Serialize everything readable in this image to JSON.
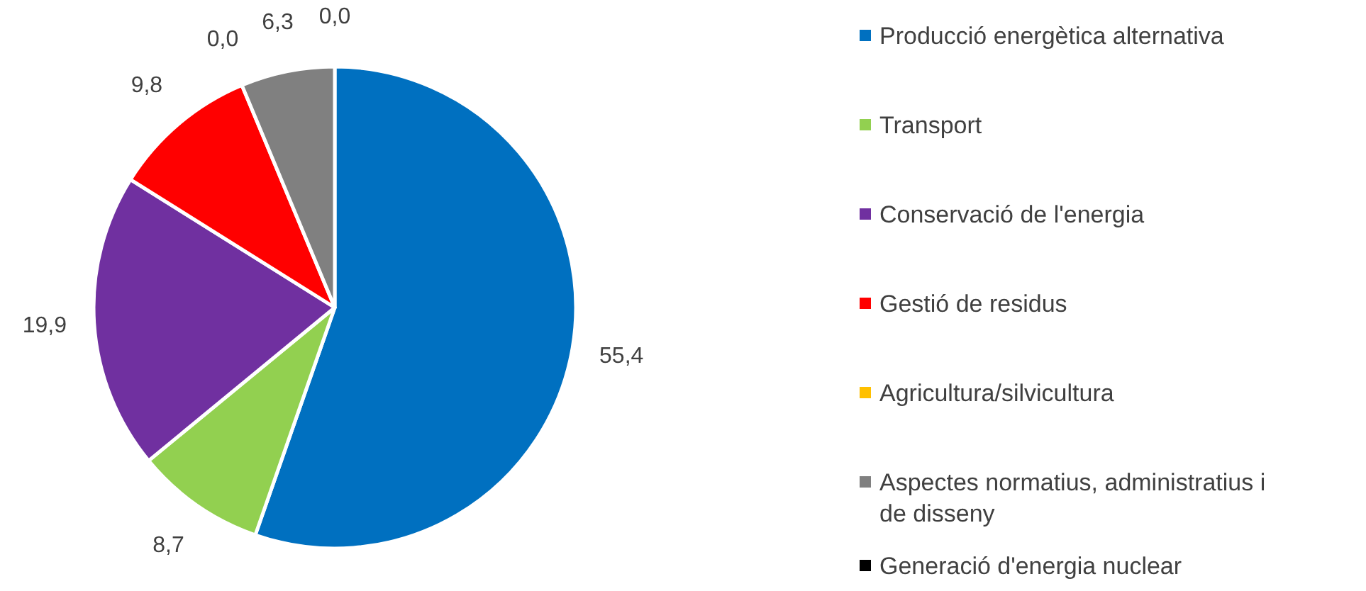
{
  "chart_data": {
    "type": "pie",
    "categories": [
      "Producció energètica alternativa",
      "Transport",
      "Conservació de l'energia",
      "Gestió de residus",
      "Agricultura/silvicultura",
      "Aspectes normatius, administratius i de disseny",
      "Generació d'energia nuclear"
    ],
    "values": [
      55.4,
      8.7,
      19.9,
      9.8,
      0.0,
      6.3,
      0.0
    ],
    "colors": [
      "#0070c0",
      "#92d050",
      "#7030a0",
      "#ff0000",
      "#ffc000",
      "#808080",
      "#000000"
    ],
    "value_labels": [
      "55,4",
      "8,7",
      "19,9",
      "9,8",
      "0,0",
      "6,3",
      "0,0"
    ],
    "legend": "right"
  }
}
